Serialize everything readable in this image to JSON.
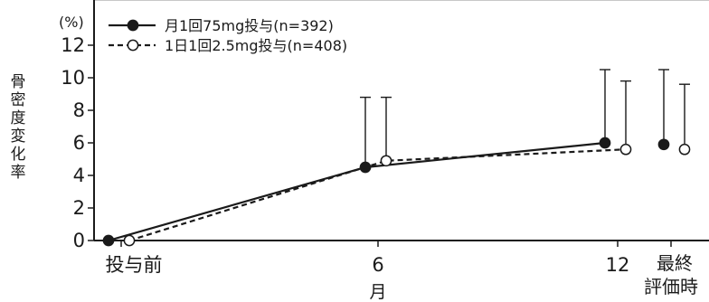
{
  "chart_data": {
    "type": "line",
    "unit_label": "(%)",
    "ylabel": "骨密度変化率",
    "xlabel": "月",
    "ylim": [
      0,
      12
    ],
    "y_ticks": [
      0,
      2,
      4,
      6,
      8,
      10,
      12
    ],
    "x_categories": [
      "投与前",
      "6",
      "12"
    ],
    "final_label": [
      "最終",
      "評価時"
    ],
    "series": [
      {
        "name": "月1回75mg投与(n=392)",
        "marker": "filled",
        "line": "solid",
        "color": "#1a1a1a",
        "values": [
          0,
          4.5,
          6.0
        ],
        "error_upper": [
          null,
          8.8,
          10.5
        ],
        "final_value": 5.9,
        "final_error_upper": 10.5
      },
      {
        "name": "1日1回2.5mg投与(n=408)",
        "marker": "open",
        "line": "dashed",
        "color": "#1a1a1a",
        "values": [
          0,
          4.9,
          5.6
        ],
        "error_upper": [
          null,
          8.8,
          9.8
        ],
        "final_value": 5.6,
        "final_error_upper": 9.6
      }
    ]
  }
}
